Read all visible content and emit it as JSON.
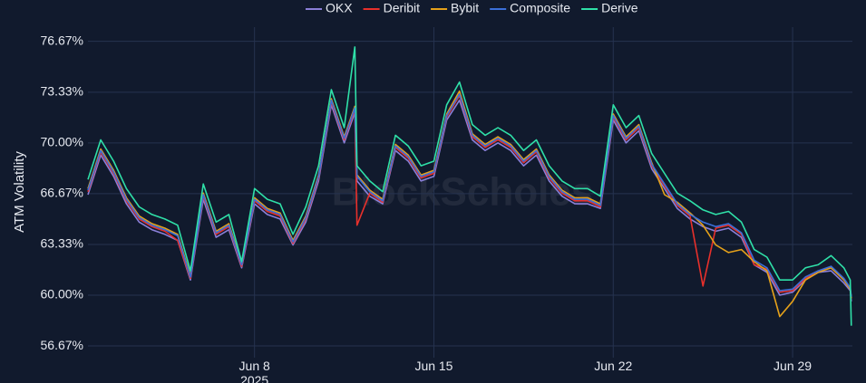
{
  "chart_data": {
    "type": "line",
    "y_label": "ATM Volatility",
    "watermark": "BlockScholes",
    "x": [
      "2025-06-01T12:00",
      "2025-06-02T00:00",
      "2025-06-02T12:00",
      "2025-06-03T00:00",
      "2025-06-03T12:00",
      "2025-06-04T00:00",
      "2025-06-04T12:00",
      "2025-06-05T00:00",
      "2025-06-05T12:00",
      "2025-06-06T00:00",
      "2025-06-06T12:00",
      "2025-06-07T00:00",
      "2025-06-07T12:00",
      "2025-06-08T00:00",
      "2025-06-08T12:00",
      "2025-06-09T00:00",
      "2025-06-09T12:00",
      "2025-06-10T00:00",
      "2025-06-10T12:00",
      "2025-06-11T00:00",
      "2025-06-11T12:00",
      "2025-06-11T22:00",
      "2025-06-12T00:00",
      "2025-06-12T12:00",
      "2025-06-13T00:00",
      "2025-06-13T12:00",
      "2025-06-14T00:00",
      "2025-06-14T12:00",
      "2025-06-15T00:00",
      "2025-06-15T12:00",
      "2025-06-16T00:00",
      "2025-06-16T12:00",
      "2025-06-17T00:00",
      "2025-06-17T12:00",
      "2025-06-18T00:00",
      "2025-06-18T12:00",
      "2025-06-19T00:00",
      "2025-06-19T12:00",
      "2025-06-20T00:00",
      "2025-06-20T12:00",
      "2025-06-21T00:00",
      "2025-06-21T12:00",
      "2025-06-22T00:00",
      "2025-06-22T12:00",
      "2025-06-23T00:00",
      "2025-06-23T12:00",
      "2025-06-24T00:00",
      "2025-06-24T12:00",
      "2025-06-25T00:00",
      "2025-06-25T12:00",
      "2025-06-26T00:00",
      "2025-06-26T12:00",
      "2025-06-27T00:00",
      "2025-06-27T12:00",
      "2025-06-28T00:00",
      "2025-06-28T12:00",
      "2025-06-29T00:00",
      "2025-06-29T12:00",
      "2025-06-30T00:00",
      "2025-06-30T12:00",
      "2025-07-01T00:00",
      "2025-07-01T06:00",
      "2025-07-01T07:00"
    ],
    "series": [
      {
        "name": "OKX",
        "color": "#8a7fd8",
        "values": [
          66.6,
          69.2,
          67.8,
          66.0,
          64.8,
          64.3,
          64.0,
          63.6,
          61.0,
          66.3,
          63.8,
          64.3,
          61.8,
          66.0,
          65.3,
          65.0,
          63.3,
          64.8,
          67.5,
          72.5,
          70.0,
          72.0,
          67.5,
          66.5,
          66.0,
          69.5,
          68.8,
          67.5,
          67.8,
          71.5,
          72.8,
          70.2,
          69.5,
          70.0,
          69.5,
          68.5,
          69.2,
          67.5,
          66.5,
          66.0,
          66.0,
          65.7,
          71.5,
          70.0,
          70.8,
          68.3,
          67.0,
          65.7,
          65.0,
          64.5,
          64.2,
          64.4,
          63.8,
          62.0,
          61.5,
          60.0,
          60.2,
          61.0,
          61.5,
          61.6,
          60.8,
          60.3,
          59.6
        ]
      },
      {
        "name": "Deribit",
        "color": "#e8302b",
        "values": [
          66.8,
          69.4,
          68.0,
          66.2,
          65.0,
          64.5,
          64.2,
          63.6,
          61.1,
          66.5,
          64.0,
          64.5,
          61.9,
          66.2,
          65.5,
          65.2,
          63.4,
          65.0,
          67.7,
          72.7,
          70.2,
          72.2,
          64.6,
          66.7,
          66.1,
          69.7,
          69.0,
          67.7,
          68.0,
          71.7,
          73.1,
          70.4,
          69.7,
          70.2,
          69.7,
          68.7,
          69.4,
          67.7,
          66.7,
          66.2,
          66.2,
          65.8,
          71.7,
          70.2,
          71.0,
          68.5,
          67.2,
          65.9,
          65.2,
          60.6,
          64.4,
          64.6,
          64.0,
          62.0,
          61.7,
          60.2,
          60.3,
          61.1,
          61.6,
          61.8,
          61.0,
          60.4,
          59.8
        ]
      },
      {
        "name": "Bybit",
        "color": "#e5a11a",
        "values": [
          67.0,
          69.6,
          68.2,
          66.4,
          65.2,
          64.7,
          64.4,
          64.0,
          61.3,
          66.7,
          64.2,
          64.7,
          62.1,
          66.4,
          65.7,
          65.4,
          63.6,
          65.2,
          67.9,
          72.9,
          70.4,
          72.4,
          67.9,
          66.9,
          66.3,
          69.9,
          69.2,
          67.9,
          68.2,
          71.9,
          73.4,
          70.6,
          69.9,
          70.4,
          69.9,
          68.9,
          69.6,
          67.9,
          66.9,
          66.4,
          66.4,
          66.0,
          71.9,
          70.4,
          71.2,
          68.7,
          66.6,
          66.1,
          65.4,
          64.6,
          63.3,
          62.8,
          63.0,
          62.2,
          61.6,
          58.6,
          59.6,
          61.0,
          61.5,
          61.8,
          61.0,
          60.4,
          59.8
        ]
      },
      {
        "name": "Composite",
        "color": "#3b6fd9",
        "values": [
          66.9,
          69.5,
          68.1,
          66.3,
          65.1,
          64.6,
          64.3,
          63.9,
          61.2,
          66.6,
          64.1,
          64.6,
          62.0,
          66.3,
          65.6,
          65.3,
          63.5,
          65.1,
          67.8,
          72.8,
          70.3,
          72.3,
          67.8,
          66.8,
          66.2,
          69.8,
          69.1,
          67.8,
          68.1,
          71.8,
          73.2,
          70.5,
          69.8,
          70.3,
          69.8,
          68.8,
          69.5,
          67.8,
          66.8,
          66.3,
          66.3,
          65.9,
          71.8,
          70.3,
          71.1,
          68.6,
          67.3,
          66.0,
          65.3,
          64.8,
          64.5,
          64.7,
          64.1,
          62.3,
          61.8,
          60.3,
          60.4,
          61.2,
          61.6,
          61.9,
          61.1,
          60.5,
          59.9
        ]
      },
      {
        "name": "Derive",
        "color": "#2fe0a8",
        "values": [
          67.6,
          70.2,
          68.8,
          67.0,
          65.8,
          65.3,
          65.0,
          64.6,
          61.6,
          67.3,
          64.8,
          65.3,
          62.2,
          67.0,
          66.3,
          66.0,
          64.0,
          65.8,
          68.5,
          73.5,
          71.0,
          76.3,
          68.5,
          67.5,
          66.8,
          70.5,
          69.8,
          68.5,
          68.8,
          72.5,
          74.0,
          71.2,
          70.5,
          71.0,
          70.5,
          69.5,
          70.2,
          68.5,
          67.5,
          67.0,
          67.0,
          66.5,
          72.5,
          71.0,
          71.8,
          69.3,
          68.0,
          66.7,
          66.2,
          65.6,
          65.3,
          65.5,
          64.8,
          63.0,
          62.5,
          61.0,
          61.0,
          61.8,
          62.0,
          62.6,
          61.8,
          61.0,
          58.0
        ]
      }
    ],
    "xlim": [
      "2025-06-01T12:00",
      "2025-07-01T08:00"
    ],
    "xticks": [
      {
        "value": "2025-06-08T00:00",
        "label": "Jun 8\n2025"
      },
      {
        "value": "2025-06-15T00:00",
        "label": "Jun 15"
      },
      {
        "value": "2025-06-22T00:00",
        "label": "Jun 22"
      },
      {
        "value": "2025-06-29T00:00",
        "label": "Jun 29"
      }
    ],
    "ylim": [
      55.9,
      77.6
    ],
    "yticks": [
      {
        "value": 56.67,
        "label": "56.67%"
      },
      {
        "value": 60,
        "label": "60.00%"
      },
      {
        "value": 63.33,
        "label": "63.33%"
      },
      {
        "value": 66.67,
        "label": "66.67%"
      },
      {
        "value": 70,
        "label": "70.00%"
      },
      {
        "value": 73.33,
        "label": "73.33%"
      },
      {
        "value": 76.67,
        "label": "76.67%"
      }
    ],
    "grid": true,
    "legend": "top"
  }
}
